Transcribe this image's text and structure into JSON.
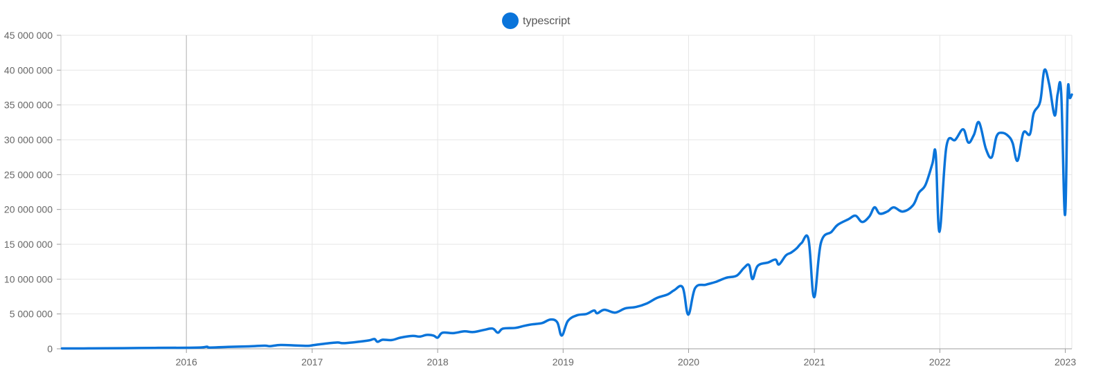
{
  "chart_data": {
    "type": "line",
    "title": "",
    "xlabel": "",
    "ylabel": "",
    "legend_position": "top-center",
    "grid": true,
    "xlim": [
      "2015-01-01",
      "2023-01-20"
    ],
    "ylim": [
      0,
      45000000
    ],
    "y_ticks": [
      {
        "value": 0,
        "label": "0"
      },
      {
        "value": 5000000,
        "label": "5 000 000"
      },
      {
        "value": 10000000,
        "label": "10 000 000"
      },
      {
        "value": 15000000,
        "label": "15 000 000"
      },
      {
        "value": 20000000,
        "label": "20 000 000"
      },
      {
        "value": 25000000,
        "label": "25 000 000"
      },
      {
        "value": 30000000,
        "label": "30 000 000"
      },
      {
        "value": 35000000,
        "label": "35 000 000"
      },
      {
        "value": 40000000,
        "label": "40 000 000"
      },
      {
        "value": 45000000,
        "label": "45 000 000"
      }
    ],
    "x_ticks": [
      {
        "value": "2016-01-01",
        "label": "2016"
      },
      {
        "value": "2017-01-01",
        "label": "2017"
      },
      {
        "value": "2018-01-01",
        "label": "2018"
      },
      {
        "value": "2019-01-01",
        "label": "2019"
      },
      {
        "value": "2020-01-01",
        "label": "2020"
      },
      {
        "value": "2021-01-01",
        "label": "2021"
      },
      {
        "value": "2022-01-01",
        "label": "2022"
      },
      {
        "value": "2023-01-01",
        "label": "2023"
      }
    ],
    "series": [
      {
        "name": "typescript",
        "color": "#0a74da",
        "points": [
          [
            "2015-01-04",
            50000
          ],
          [
            "2015-04-01",
            60000
          ],
          [
            "2015-07-01",
            90000
          ],
          [
            "2015-10-01",
            130000
          ],
          [
            "2016-01-01",
            150000
          ],
          [
            "2016-02-15",
            200000
          ],
          [
            "2016-03-01",
            300000
          ],
          [
            "2016-03-10",
            180000
          ],
          [
            "2016-05-01",
            280000
          ],
          [
            "2016-07-01",
            350000
          ],
          [
            "2016-08-15",
            450000
          ],
          [
            "2016-09-01",
            380000
          ],
          [
            "2016-10-01",
            550000
          ],
          [
            "2016-11-15",
            480000
          ],
          [
            "2016-12-20",
            430000
          ],
          [
            "2017-01-01",
            500000
          ],
          [
            "2017-02-01",
            700000
          ],
          [
            "2017-03-15",
            900000
          ],
          [
            "2017-04-01",
            800000
          ],
          [
            "2017-05-15",
            1000000
          ],
          [
            "2017-06-15",
            1200000
          ],
          [
            "2017-07-01",
            1400000
          ],
          [
            "2017-07-10",
            1000000
          ],
          [
            "2017-07-25",
            1300000
          ],
          [
            "2017-08-20",
            1250000
          ],
          [
            "2017-09-15",
            1600000
          ],
          [
            "2017-10-20",
            1850000
          ],
          [
            "2017-11-10",
            1750000
          ],
          [
            "2017-12-01",
            2000000
          ],
          [
            "2017-12-20",
            1900000
          ],
          [
            "2018-01-01",
            1600000
          ],
          [
            "2018-01-15",
            2300000
          ],
          [
            "2018-02-15",
            2250000
          ],
          [
            "2018-03-20",
            2500000
          ],
          [
            "2018-04-15",
            2400000
          ],
          [
            "2018-05-15",
            2700000
          ],
          [
            "2018-06-10",
            2900000
          ],
          [
            "2018-06-25",
            2300000
          ],
          [
            "2018-07-10",
            2900000
          ],
          [
            "2018-08-15",
            3000000
          ],
          [
            "2018-09-10",
            3300000
          ],
          [
            "2018-10-01",
            3500000
          ],
          [
            "2018-11-01",
            3700000
          ],
          [
            "2018-11-25",
            4200000
          ],
          [
            "2018-12-15",
            3800000
          ],
          [
            "2018-12-28",
            1900000
          ],
          [
            "2019-01-15",
            4000000
          ],
          [
            "2019-02-10",
            4800000
          ],
          [
            "2019-03-10",
            5000000
          ],
          [
            "2019-04-01",
            5500000
          ],
          [
            "2019-04-10",
            5100000
          ],
          [
            "2019-05-01",
            5600000
          ],
          [
            "2019-06-01",
            5200000
          ],
          [
            "2019-07-01",
            5800000
          ],
          [
            "2019-08-01",
            6000000
          ],
          [
            "2019-09-01",
            6500000
          ],
          [
            "2019-10-01",
            7300000
          ],
          [
            "2019-11-01",
            7800000
          ],
          [
            "2019-11-20",
            8400000
          ],
          [
            "2019-12-15",
            8800000
          ],
          [
            "2019-12-31",
            4900000
          ],
          [
            "2020-01-20",
            8700000
          ],
          [
            "2020-02-20",
            9200000
          ],
          [
            "2020-03-20",
            9600000
          ],
          [
            "2020-04-20",
            10200000
          ],
          [
            "2020-05-20",
            10500000
          ],
          [
            "2020-06-10",
            11600000
          ],
          [
            "2020-06-25",
            12000000
          ],
          [
            "2020-07-05",
            10000000
          ],
          [
            "2020-07-20",
            11900000
          ],
          [
            "2020-08-20",
            12400000
          ],
          [
            "2020-09-10",
            12800000
          ],
          [
            "2020-09-20",
            12100000
          ],
          [
            "2020-10-10",
            13400000
          ],
          [
            "2020-10-25",
            13800000
          ],
          [
            "2020-11-10",
            14400000
          ],
          [
            "2020-11-25",
            15200000
          ],
          [
            "2020-12-15",
            15700000
          ],
          [
            "2020-12-31",
            7400000
          ],
          [
            "2021-01-20",
            15200000
          ],
          [
            "2021-02-20",
            16800000
          ],
          [
            "2021-03-10",
            17800000
          ],
          [
            "2021-04-10",
            18600000
          ],
          [
            "2021-05-01",
            19100000
          ],
          [
            "2021-05-20",
            18200000
          ],
          [
            "2021-06-10",
            19000000
          ],
          [
            "2021-06-25",
            20300000
          ],
          [
            "2021-07-10",
            19400000
          ],
          [
            "2021-08-01",
            19700000
          ],
          [
            "2021-08-20",
            20300000
          ],
          [
            "2021-09-15",
            19700000
          ],
          [
            "2021-10-15",
            20600000
          ],
          [
            "2021-11-01",
            22400000
          ],
          [
            "2021-11-20",
            23500000
          ],
          [
            "2021-12-10",
            26500000
          ],
          [
            "2021-12-20",
            28000000
          ],
          [
            "2021-12-31",
            16800000
          ],
          [
            "2022-01-20",
            29000000
          ],
          [
            "2022-02-15",
            30000000
          ],
          [
            "2022-03-10",
            31500000
          ],
          [
            "2022-03-25",
            29600000
          ],
          [
            "2022-04-10",
            30700000
          ],
          [
            "2022-04-25",
            32500000
          ],
          [
            "2022-05-15",
            28700000
          ],
          [
            "2022-06-01",
            27500000
          ],
          [
            "2022-06-15",
            30500000
          ],
          [
            "2022-07-01",
            31000000
          ],
          [
            "2022-07-20",
            30500000
          ],
          [
            "2022-08-01",
            29500000
          ],
          [
            "2022-08-15",
            27000000
          ],
          [
            "2022-09-01",
            31000000
          ],
          [
            "2022-09-20",
            30800000
          ],
          [
            "2022-10-01",
            33800000
          ],
          [
            "2022-10-20",
            35500000
          ],
          [
            "2022-11-01",
            40000000
          ],
          [
            "2022-11-15",
            38000000
          ],
          [
            "2022-12-01",
            33500000
          ],
          [
            "2022-12-10",
            36600000
          ],
          [
            "2022-12-20",
            36800000
          ],
          [
            "2022-12-31",
            19200000
          ],
          [
            "2023-01-08",
            36800000
          ],
          [
            "2023-01-14",
            36000000
          ],
          [
            "2023-01-20",
            36500000
          ]
        ]
      }
    ]
  }
}
